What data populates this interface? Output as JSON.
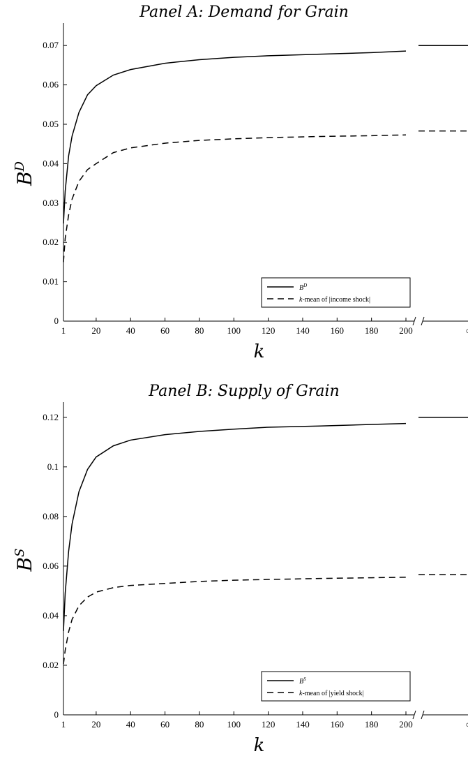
{
  "chart_data": [
    {
      "type": "line",
      "title": "Panel A: Demand for Grain",
      "ylabel_main": "B",
      "ylabel_sup": "D",
      "xlabel": "k",
      "ylim": [
        0,
        0.075
      ],
      "yticks": [
        "0",
        "0.01",
        "0.02",
        "0.03",
        "0.04",
        "0.05",
        "0.06",
        "0.07"
      ],
      "ytick_values": [
        0,
        0.01,
        0.02,
        0.03,
        0.04,
        0.05,
        0.06,
        0.07
      ],
      "xlim": [
        1,
        200
      ],
      "xticks": [
        "1",
        "20",
        "40",
        "60",
        "80",
        "100",
        "120",
        "140",
        "160",
        "180",
        "200"
      ],
      "xtick_values": [
        1,
        20,
        40,
        60,
        80,
        100,
        120,
        140,
        160,
        180,
        200
      ],
      "x_break_label": "∞",
      "legend_position": "bottom-right",
      "series": [
        {
          "name": "B^D",
          "legend_main": "B",
          "legend_sup": "D",
          "legend_rest": "",
          "style": "solid",
          "x": [
            1,
            2,
            4,
            6,
            10,
            15,
            20,
            30,
            40,
            60,
            80,
            100,
            120,
            150,
            180,
            200
          ],
          "values": [
            0.0248,
            0.033,
            0.042,
            0.047,
            0.053,
            0.0575,
            0.0598,
            0.0625,
            0.0639,
            0.0655,
            0.0664,
            0.067,
            0.0674,
            0.0678,
            0.0682,
            0.0686
          ],
          "infinity_value": 0.07
        },
        {
          "name": "k-mean of |income shock|",
          "legend_main": "k",
          "legend_sup": "",
          "legend_rest": "-mean of |income shock|",
          "style": "dashed",
          "x": [
            1,
            2,
            4,
            6,
            10,
            15,
            20,
            30,
            40,
            60,
            80,
            100,
            120,
            150,
            180,
            200
          ],
          "values": [
            0.015,
            0.021,
            0.027,
            0.031,
            0.0355,
            0.0385,
            0.04,
            0.0428,
            0.044,
            0.0452,
            0.0459,
            0.0463,
            0.0466,
            0.0469,
            0.0471,
            0.0473
          ],
          "infinity_value": 0.0483
        }
      ]
    },
    {
      "type": "line",
      "title": "Panel B: Supply of Grain",
      "ylabel_main": "B",
      "ylabel_sup": "S",
      "xlabel": "k",
      "ylim": [
        0,
        0.125
      ],
      "yticks": [
        "0",
        "0.02",
        "0.04",
        "0.06",
        "0.08",
        "0.1",
        "0.12"
      ],
      "ytick_values": [
        0,
        0.02,
        0.04,
        0.06,
        0.08,
        0.1,
        0.12
      ],
      "xlim": [
        1,
        200
      ],
      "xticks": [
        "1",
        "20",
        "40",
        "60",
        "80",
        "100",
        "120",
        "140",
        "160",
        "180",
        "200"
      ],
      "xtick_values": [
        1,
        20,
        40,
        60,
        80,
        100,
        120,
        140,
        160,
        180,
        200
      ],
      "x_break_label": "∞",
      "legend_position": "bottom-right",
      "series": [
        {
          "name": "B^S",
          "legend_main": "B",
          "legend_sup": "S",
          "legend_rest": "",
          "style": "solid",
          "x": [
            1,
            2,
            4,
            6,
            10,
            15,
            20,
            30,
            40,
            60,
            80,
            100,
            120,
            150,
            180,
            200
          ],
          "values": [
            0.0338,
            0.049,
            0.066,
            0.077,
            0.09,
            0.099,
            0.104,
            0.1085,
            0.1108,
            0.113,
            0.1143,
            0.1152,
            0.116,
            0.1165,
            0.1171,
            0.1175
          ],
          "infinity_value": 0.12
        },
        {
          "name": "k-mean of |yield shock|",
          "legend_main": "k",
          "legend_sup": "",
          "legend_rest": "-mean of |yield shock|",
          "style": "dashed",
          "x": [
            1,
            2,
            4,
            6,
            10,
            15,
            20,
            30,
            40,
            60,
            80,
            100,
            120,
            150,
            180,
            200
          ],
          "values": [
            0.0205,
            0.026,
            0.0335,
            0.0385,
            0.044,
            0.0475,
            0.0495,
            0.0513,
            0.0522,
            0.053,
            0.0538,
            0.0543,
            0.0546,
            0.055,
            0.0553,
            0.0555
          ],
          "infinity_value": 0.0565
        }
      ]
    }
  ]
}
